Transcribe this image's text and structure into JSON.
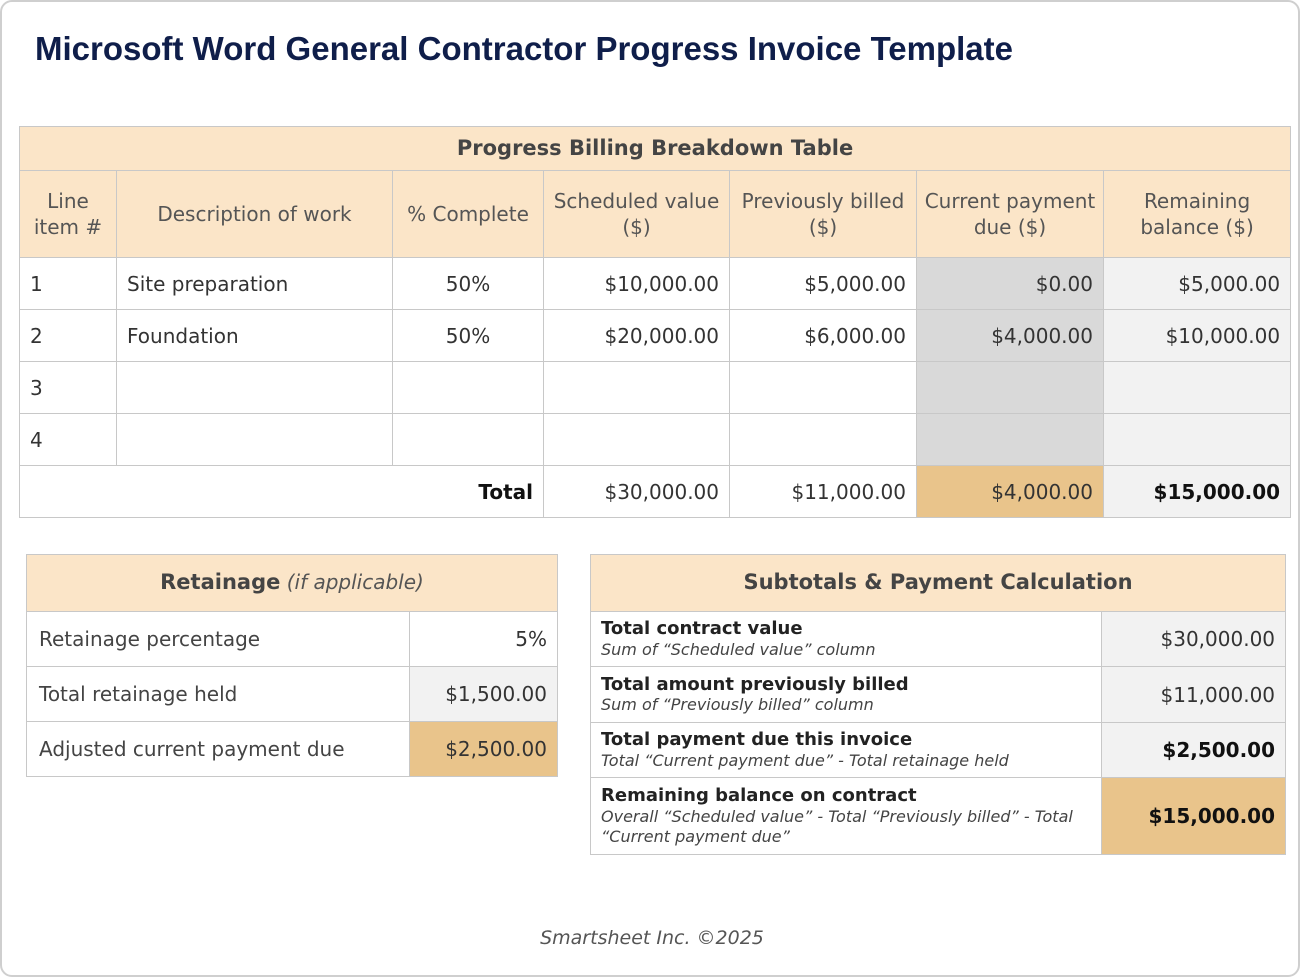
{
  "title": "Microsoft Word General Contractor Progress Invoice Template",
  "billing_table": {
    "title": "Progress Billing Breakdown Table",
    "columns": [
      "Line item #",
      "Description of work",
      "% Complete",
      "Scheduled value ($)",
      "Previously billed ($)",
      "Current payment due ($)",
      "Remaining balance ($)"
    ],
    "rows": [
      [
        "1",
        "Site preparation",
        "50%",
        "$10,000.00",
        "$5,000.00",
        "$0.00",
        "$5,000.00"
      ],
      [
        "2",
        "Foundation",
        "50%",
        "$20,000.00",
        "$6,000.00",
        "$4,000.00",
        "$10,000.00"
      ],
      [
        "3"
      ],
      [
        "4"
      ]
    ],
    "total": {
      "label": "Total",
      "values": [
        "$30,000.00",
        "$11,000.00",
        "$4,000.00",
        "$15,000.00"
      ]
    }
  },
  "retainage": {
    "title": "Retainage",
    "note": "(if applicable)",
    "rows": [
      [
        "Retainage percentage",
        "5%"
      ],
      [
        "Total retainage held",
        "$1,500.00"
      ],
      [
        "Adjusted current payment due",
        "$2,500.00"
      ]
    ]
  },
  "subtotals": {
    "title": "Subtotals & Payment Calculation",
    "rows": [
      {
        "label": "Total contract value",
        "note": "Sum of “Scheduled value” column",
        "value": "$30,000.00"
      },
      {
        "label": "Total amount previously billed",
        "note": "Sum of “Previously billed” column",
        "value": "$11,000.00"
      },
      {
        "label": "Total payment due this invoice",
        "note": "Total “Current payment due” - Total retainage held",
        "value": "$2,500.00"
      },
      {
        "label": "Remaining balance on contract",
        "note": "Overall “Scheduled value” - Total “Previously billed” - Total “Current payment due”",
        "value": "$15,000.00"
      }
    ]
  },
  "footer": "Smartsheet Inc. ©2025"
}
